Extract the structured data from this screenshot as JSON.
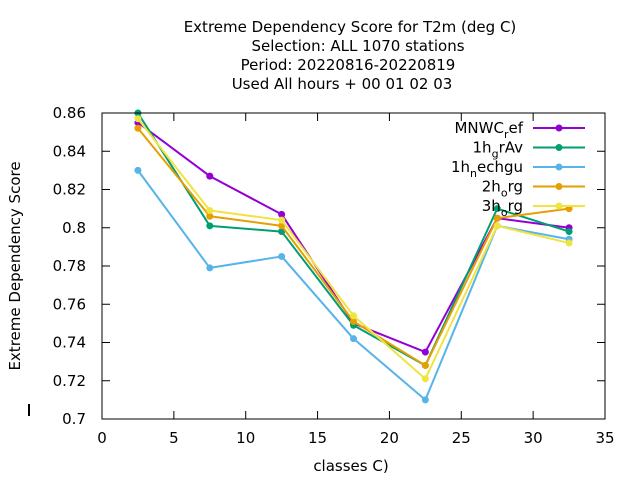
{
  "chart_data": {
    "type": "line",
    "title_lines": [
      "Extreme Dependency Score  for T2m (deg C)",
      "Selection: ALL   1070 stations",
      "Period: 20220816-20220819",
      "Used  All hours + 00 01 02 03"
    ],
    "xlabel": "classes C)",
    "ylabel": "Extreme Dependency Score",
    "xlim": [
      0,
      35
    ],
    "ylim": [
      0.7,
      0.86
    ],
    "xticks": [
      0,
      5,
      10,
      15,
      20,
      25,
      30,
      35
    ],
    "yticks": [
      0.7,
      0.72,
      0.74,
      0.76,
      0.78,
      0.8,
      0.82,
      0.84,
      0.86
    ],
    "xtick_labels": [
      "0",
      "5",
      "10",
      "15",
      "20",
      "25",
      "30",
      "35"
    ],
    "ytick_labels": [
      "0.7",
      "0.72",
      "0.74",
      "0.76",
      "0.78",
      "0.8",
      "0.82",
      "0.84",
      "0.86"
    ],
    "legend_position": "top-right",
    "x": [
      2.5,
      7.5,
      12.5,
      17.5,
      22.5,
      27.5,
      32.5
    ],
    "series": [
      {
        "name_base": "MNWC",
        "name_sub": "r",
        "name_rest": "ef",
        "color": "#9400d3",
        "values": [
          0.855,
          0.827,
          0.807,
          0.75,
          0.735,
          0.805,
          0.8
        ]
      },
      {
        "name_base": "1h",
        "name_sub": "g",
        "name_rest": "rAv",
        "color": "#009e73",
        "values": [
          0.86,
          0.801,
          0.798,
          0.749,
          0.728,
          0.81,
          0.798
        ]
      },
      {
        "name_base": "1h",
        "name_sub": "n",
        "name_rest": "echgu",
        "color": "#56b4e9",
        "values": [
          0.83,
          0.779,
          0.785,
          0.742,
          0.71,
          0.801,
          0.794
        ]
      },
      {
        "name_base": "2h",
        "name_sub": "o",
        "name_rest": "rg",
        "color": "#e69f00",
        "values": [
          0.852,
          0.806,
          0.801,
          0.751,
          0.728,
          0.805,
          0.81
        ]
      },
      {
        "name_base": "3h",
        "name_sub": "o",
        "name_rest": "rg",
        "color": "#f0e442",
        "values": [
          0.857,
          0.809,
          0.804,
          0.754,
          0.721,
          0.801,
          0.792
        ]
      }
    ]
  }
}
